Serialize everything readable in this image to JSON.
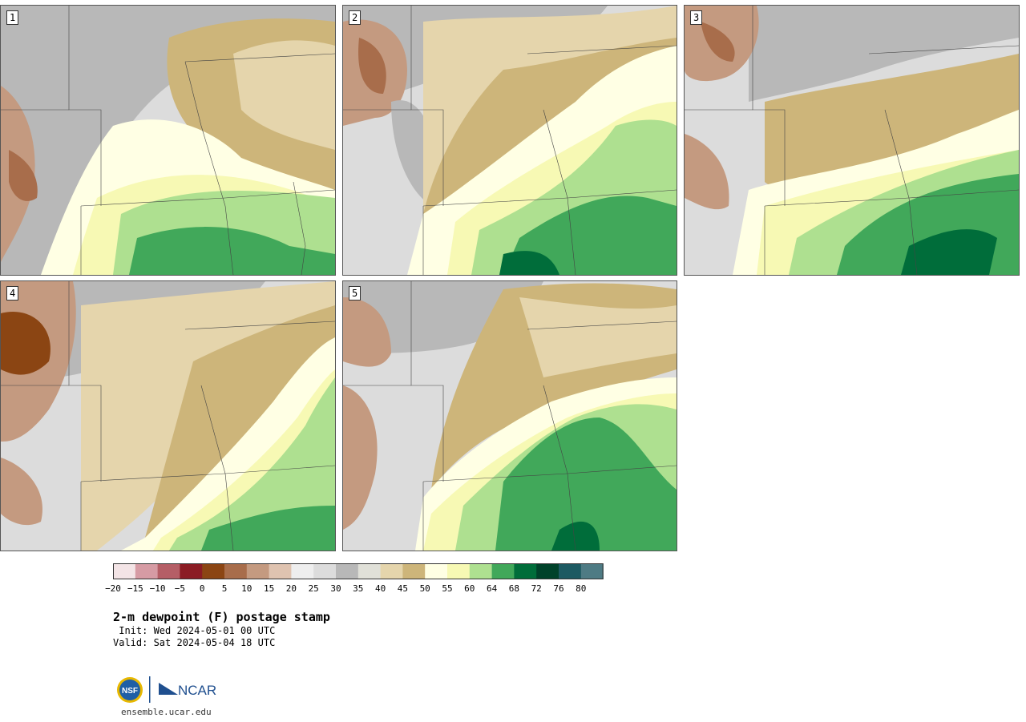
{
  "panels": [
    {
      "label": "1"
    },
    {
      "label": "2"
    },
    {
      "label": "3"
    },
    {
      "label": "4"
    },
    {
      "label": "5"
    }
  ],
  "colorbar": {
    "colors": [
      "#f3e4e6",
      "#d69ba4",
      "#b55e66",
      "#8b1c24",
      "#8b4513",
      "#a86d4b",
      "#c49a80",
      "#dfc3b0",
      "#eeeeee",
      "#dcdcdc",
      "#b8b8b8",
      "#e0e0d8",
      "#e5d5ac",
      "#cdb57a",
      "#ffffe4",
      "#f7f9b4",
      "#aee090",
      "#41a85a",
      "#006d3a",
      "#00422a",
      "#1d5a62",
      "#4e7b84"
    ],
    "ticks": [
      "−20",
      "−15",
      "−10",
      "−5",
      "0",
      "5",
      "10",
      "15",
      "20",
      "25",
      "30",
      "35",
      "40",
      "45",
      "50",
      "55",
      "60",
      "64",
      "68",
      "72",
      "76",
      "80"
    ]
  },
  "title": "2-m dewpoint (F) postage stamp",
  "init": " Init: Wed 2024-05-01 00 UTC",
  "valid": "Valid: Sat 2024-05-04 18 UTC",
  "logos": {
    "nsf": "NSF",
    "ncar": "NCAR"
  },
  "website": "ensemble.ucar.edu"
}
